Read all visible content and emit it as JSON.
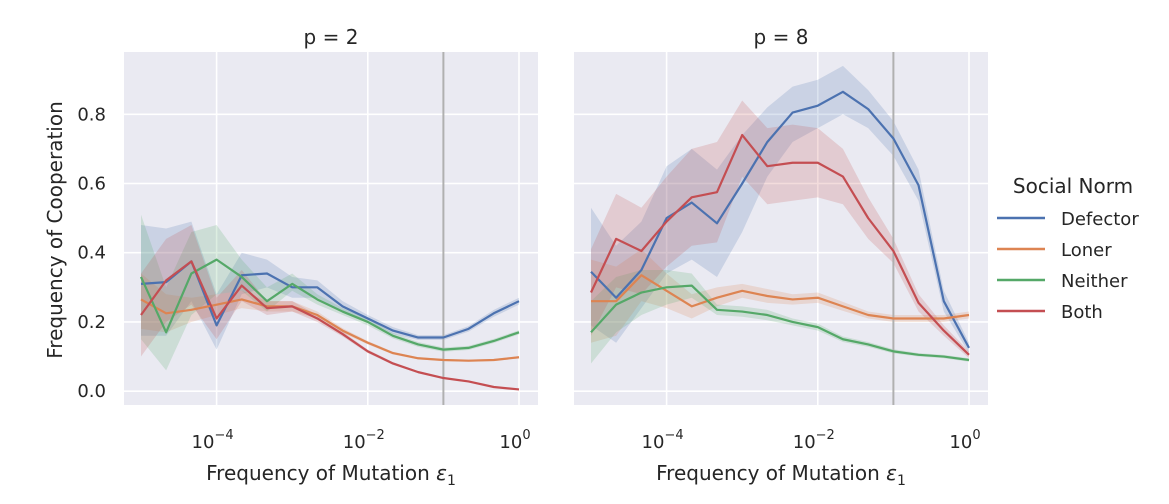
{
  "chart_data": {
    "type": "line",
    "x_scale": "log",
    "ylabel": "Frequency of Cooperation",
    "xlabel": "Frequency of Mutation ε₁",
    "xlabel_main": "Frequency of Mutation ",
    "xlabel_symbol": "ε",
    "xlabel_sub": "1",
    "xlim": [
      1e-05,
      1
    ],
    "ylim": [
      -0.04,
      0.98
    ],
    "x_ticks": [
      0.0001,
      0.01,
      1
    ],
    "x_tick_labels": [
      {
        "base": "10",
        "exp": "−4"
      },
      {
        "base": "10",
        "exp": "−2"
      },
      {
        "base": "10",
        "exp": "0"
      }
    ],
    "y_ticks": [
      0.0,
      0.2,
      0.4,
      0.6,
      0.8
    ],
    "y_tick_labels": [
      "0.0",
      "0.2",
      "0.4",
      "0.6",
      "0.8"
    ],
    "grid": true,
    "reference_line_x": 0.1,
    "legend": {
      "title": "Social Norm",
      "placement": "right",
      "entries": [
        "Defector",
        "Loner",
        "Neither",
        "Both"
      ]
    },
    "colors": {
      "Defector": "#4c72b0",
      "Loner": "#dd8452",
      "Neither": "#55a868",
      "Both": "#c44e52",
      "reference_line": "#b0b0b0",
      "panel_bg": "#eaeaf2"
    },
    "x": [
      1e-05,
      2.15e-05,
      4.64e-05,
      0.0001,
      0.000215,
      0.000464,
      0.001,
      0.00215,
      0.00464,
      0.01,
      0.0215,
      0.0464,
      0.1,
      0.215,
      0.464,
      1.0
    ],
    "panels": [
      {
        "title": "p = 2",
        "series": [
          {
            "name": "Defector",
            "values": [
              0.31,
              0.315,
              0.375,
              0.19,
              0.335,
              0.34,
              0.3,
              0.3,
              0.245,
              0.21,
              0.175,
              0.155,
              0.155,
              0.18,
              0.225,
              0.26
            ],
            "lower": [
              0.16,
              0.16,
              0.26,
              0.12,
              0.28,
              0.3,
              0.27,
              0.27,
              0.23,
              0.2,
              0.165,
              0.148,
              0.148,
              0.172,
              0.215,
              0.25
            ],
            "upper": [
              0.48,
              0.47,
              0.49,
              0.28,
              0.4,
              0.38,
              0.33,
              0.32,
              0.26,
              0.22,
              0.185,
              0.162,
              0.162,
              0.188,
              0.235,
              0.27
            ]
          },
          {
            "name": "Loner",
            "values": [
              0.265,
              0.225,
              0.235,
              0.25,
              0.265,
              0.245,
              0.245,
              0.22,
              0.175,
              0.14,
              0.11,
              0.095,
              0.09,
              0.088,
              0.09,
              0.098
            ],
            "lower": [
              0.18,
              0.17,
              0.2,
              0.22,
              0.24,
              0.23,
              0.23,
              0.21,
              0.168,
              0.135,
              0.106,
              0.092,
              0.087,
              0.085,
              0.087,
              0.095
            ],
            "upper": [
              0.34,
              0.28,
              0.27,
              0.28,
              0.29,
              0.26,
              0.26,
              0.23,
              0.182,
              0.145,
              0.114,
              0.098,
              0.093,
              0.091,
              0.093,
              0.101
            ]
          },
          {
            "name": "Neither",
            "values": [
              0.33,
              0.17,
              0.34,
              0.38,
              0.33,
              0.26,
              0.31,
              0.265,
              0.23,
              0.2,
              0.16,
              0.135,
              0.12,
              0.125,
              0.145,
              0.17
            ],
            "lower": [
              0.15,
              0.06,
              0.22,
              0.28,
              0.29,
              0.23,
              0.29,
              0.25,
              0.22,
              0.19,
              0.152,
              0.128,
              0.114,
              0.119,
              0.139,
              0.164
            ],
            "upper": [
              0.51,
              0.3,
              0.46,
              0.48,
              0.38,
              0.3,
              0.34,
              0.28,
              0.24,
              0.21,
              0.168,
              0.142,
              0.126,
              0.131,
              0.151,
              0.176
            ]
          },
          {
            "name": "Both",
            "values": [
              0.22,
              0.32,
              0.375,
              0.21,
              0.305,
              0.24,
              0.245,
              0.21,
              0.165,
              0.115,
              0.08,
              0.055,
              0.038,
              0.028,
              0.012,
              0.005
            ],
            "lower": [
              0.1,
              0.2,
              0.25,
              0.15,
              0.26,
              0.22,
              0.23,
              0.2,
              0.158,
              0.11,
              0.076,
              0.052,
              0.036,
              0.026,
              0.011,
              0.004
            ],
            "upper": [
              0.34,
              0.44,
              0.48,
              0.27,
              0.35,
              0.26,
              0.26,
              0.22,
              0.172,
              0.12,
              0.084,
              0.058,
              0.04,
              0.03,
              0.014,
              0.007
            ]
          }
        ]
      },
      {
        "title": "p = 8",
        "series": [
          {
            "name": "Defector",
            "values": [
              0.345,
              0.27,
              0.35,
              0.5,
              0.545,
              0.485,
              0.6,
              0.72,
              0.805,
              0.825,
              0.865,
              0.815,
              0.73,
              0.595,
              0.26,
              0.125
            ],
            "lower": [
              0.19,
              0.14,
              0.24,
              0.34,
              0.38,
              0.33,
              0.46,
              0.62,
              0.72,
              0.76,
              0.8,
              0.76,
              0.68,
              0.55,
              0.23,
              0.11
            ],
            "upper": [
              0.53,
              0.42,
              0.49,
              0.65,
              0.7,
              0.64,
              0.74,
              0.82,
              0.88,
              0.9,
              0.94,
              0.87,
              0.78,
              0.64,
              0.29,
              0.14
            ]
          },
          {
            "name": "Loner",
            "values": [
              0.26,
              0.26,
              0.335,
              0.29,
              0.245,
              0.27,
              0.29,
              0.275,
              0.265,
              0.27,
              0.245,
              0.22,
              0.21,
              0.21,
              0.21,
              0.22
            ],
            "lower": [
              0.14,
              0.16,
              0.26,
              0.24,
              0.21,
              0.245,
              0.27,
              0.255,
              0.25,
              0.255,
              0.232,
              0.21,
              0.2,
              0.2,
              0.2,
              0.21
            ],
            "upper": [
              0.38,
              0.36,
              0.41,
              0.34,
              0.28,
              0.3,
              0.31,
              0.295,
              0.28,
              0.285,
              0.258,
              0.23,
              0.22,
              0.22,
              0.22,
              0.23
            ]
          },
          {
            "name": "Neither",
            "values": [
              0.17,
              0.25,
              0.285,
              0.3,
              0.305,
              0.235,
              0.23,
              0.22,
              0.2,
              0.185,
              0.15,
              0.135,
              0.115,
              0.105,
              0.1,
              0.09
            ],
            "lower": [
              0.08,
              0.17,
              0.22,
              0.25,
              0.27,
              0.22,
              0.215,
              0.205,
              0.19,
              0.175,
              0.142,
              0.128,
              0.109,
              0.1,
              0.095,
              0.085
            ],
            "upper": [
              0.26,
              0.33,
              0.35,
              0.35,
              0.34,
              0.25,
              0.245,
              0.235,
              0.21,
              0.195,
              0.158,
              0.142,
              0.121,
              0.11,
              0.105,
              0.095
            ]
          },
          {
            "name": "Both",
            "values": [
              0.285,
              0.44,
              0.405,
              0.49,
              0.56,
              0.575,
              0.74,
              0.65,
              0.66,
              0.66,
              0.62,
              0.5,
              0.405,
              0.255,
              0.175,
              0.105
            ],
            "lower": [
              0.16,
              0.3,
              0.28,
              0.36,
              0.42,
              0.43,
              0.62,
              0.54,
              0.55,
              0.56,
              0.54,
              0.44,
              0.37,
              0.23,
              0.16,
              0.095
            ],
            "upper": [
              0.41,
              0.57,
              0.53,
              0.62,
              0.7,
              0.72,
              0.84,
              0.76,
              0.77,
              0.76,
              0.7,
              0.56,
              0.44,
              0.28,
              0.19,
              0.115
            ]
          }
        ]
      }
    ]
  }
}
